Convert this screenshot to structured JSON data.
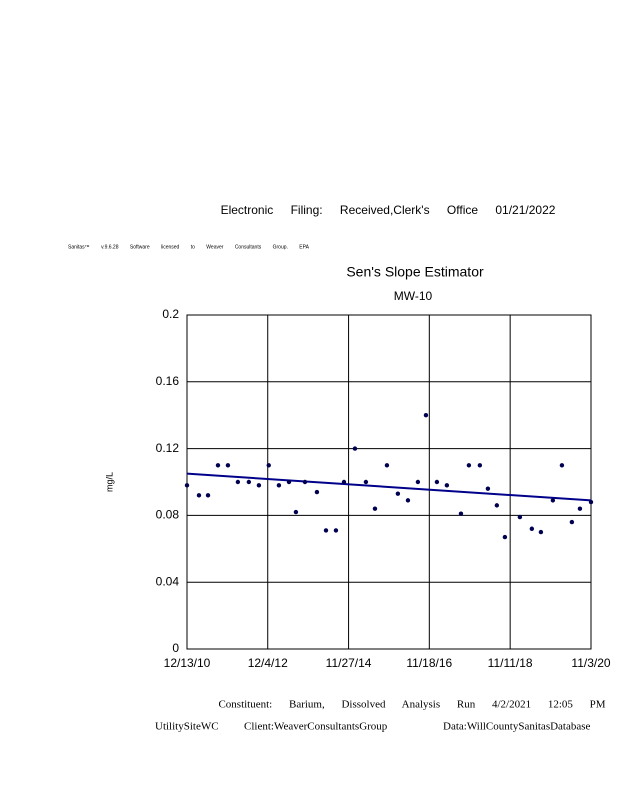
{
  "header": {
    "filing": "Electronic Filing: Received,Clerk's Office 01/21/2022",
    "license": "Sanitas™ v.9.6.28 Software licensed to Weaver Consultants Group. EPA"
  },
  "chart_data": {
    "type": "scatter",
    "title": "Sen's Slope Estimator",
    "subtitle": "MW-10",
    "y_label": "mg/L",
    "x": [
      "12/13/10",
      "3/30/11",
      "6/19/11",
      "9/16/11",
      "12/14/11",
      "3/12/12",
      "6/18/12",
      "9/16/12",
      "12/13/12",
      "3/14/13",
      "6/12/13",
      "8/13/13",
      "11/2/13",
      "2/17/14",
      "5/9/14",
      "8/6/14",
      "10/17/14",
      "1/23/15",
      "5/1/15",
      "7/21/15",
      "11/5/15",
      "2/11/16",
      "5/11/16",
      "8/8/16",
      "10/19/16",
      "1/25/17",
      "4/24/17",
      "8/28/17",
      "11/7/17",
      "2/13/18",
      "4/26/18",
      "7/15/18",
      "9/25/18",
      "2/6/19",
      "5/24/19",
      "8/13/19",
      "11/28/19",
      "2/17/20",
      "5/16/20",
      "7/27/20",
      "11/3/20"
    ],
    "values": [
      0.098,
      0.092,
      0.092,
      0.11,
      0.11,
      0.1,
      0.1,
      0.098,
      0.11,
      0.098,
      0.1,
      0.082,
      0.1,
      0.094,
      0.071,
      0.071,
      0.1,
      0.12,
      0.1,
      0.084,
      0.11,
      0.093,
      0.089,
      0.1,
      0.14,
      0.1,
      0.098,
      0.081,
      0.11,
      0.11,
      0.096,
      0.086,
      0.067,
      0.079,
      0.072,
      0.07,
      0.089,
      0.11,
      0.076,
      0.084,
      0.088
    ],
    "color": "#000050",
    "trend_line": {
      "color": "#00008b",
      "values": [
        0.105,
        0.089
      ]
    },
    "xlim": [
      "12/13/10",
      "11/3/20"
    ],
    "xticks": [
      "12/13/10",
      "12/4/12",
      "11/27/14",
      "11/18/16",
      "11/11/18",
      "11/3/20"
    ],
    "ylim": [
      0,
      0.2
    ],
    "yticks": [
      0,
      0.04,
      0.08,
      0.12,
      0.16,
      0.2
    ],
    "grid": true
  },
  "footer": {
    "constituent": "Constituent: Barium, Dissolved Analysis Run 4/2/2021 12:05 PM",
    "site": "UtilitySiteWC",
    "client": "Client:WeaverConsultantsGroup",
    "database": "Data:WillCountySanitasDatabase"
  }
}
